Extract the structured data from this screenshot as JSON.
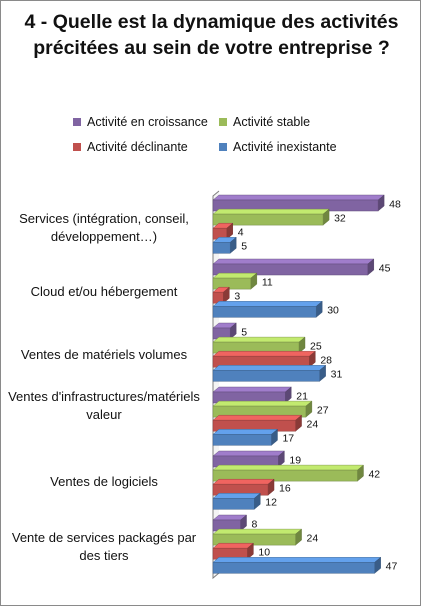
{
  "chart_data": {
    "type": "bar",
    "orientation": "horizontal",
    "title": "4 - Quelle est la dynamique des activités précitées au sein de votre entreprise ?",
    "categories": [
      "Services (intégration, conseil, développement…)",
      "Cloud et/ou hébergement",
      "Ventes de matériels volumes",
      "Ventes d'infrastructures/matériels valeur",
      "Ventes de logiciels",
      "Vente de services packagés par des tiers"
    ],
    "series": [
      {
        "name": "Activité en croissance",
        "color": "#8064a2",
        "values": [
          48,
          45,
          5,
          21,
          19,
          8
        ]
      },
      {
        "name": "Activité stable",
        "color": "#9bbb59",
        "values": [
          32,
          11,
          25,
          27,
          42,
          24
        ]
      },
      {
        "name": "Activité déclinante",
        "color": "#c0504d",
        "values": [
          4,
          3,
          28,
          24,
          16,
          10
        ]
      },
      {
        "name": "Activité inexistante",
        "color": "#4f81bd",
        "values": [
          5,
          30,
          31,
          17,
          12,
          47
        ]
      }
    ],
    "xlim": [
      0,
      50
    ],
    "style": "3d-clustered-bar",
    "legend_position": "top",
    "grid": false,
    "data_labels": true
  }
}
